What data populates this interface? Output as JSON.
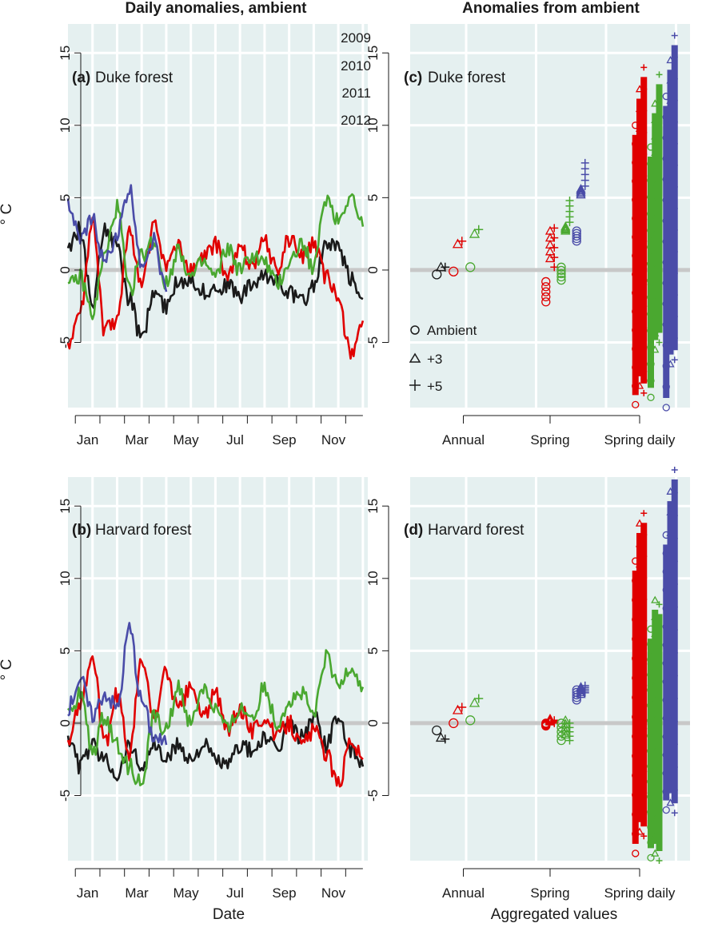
{
  "colors": {
    "panel_bg": "#e5f0f0",
    "grid": "#ffffff",
    "zero_line": "#c8c8c8",
    "2009": "#1a1a1a",
    "2010": "#e00000",
    "2011": "#4aa830",
    "2012": "#4a4ca8"
  },
  "column_titles": {
    "left": "Daily anomalies, ambient",
    "right": "Anomalies from ambient"
  },
  "x_titles": {
    "left": "Date",
    "right": "Aggregated values"
  },
  "y_title_left_top": "° C",
  "y_title_left_bottom": "° C",
  "legend": {
    "years": [
      "2009",
      "2010",
      "2011",
      "2012"
    ],
    "treatments": [
      {
        "symbol": "circle",
        "label": "Ambient"
      },
      {
        "symbol": "triangle",
        "label": "+3"
      },
      {
        "symbol": "plus",
        "label": "+5"
      }
    ]
  },
  "chart_data": [
    {
      "panel": "a",
      "type": "line",
      "label_tag": "(a)",
      "label_text": "Duke forest",
      "xlabel": "",
      "ylabel": "° C",
      "ylim": [
        -9.5,
        17
      ],
      "yticks": [
        -5,
        0,
        5,
        10,
        15
      ],
      "x_ticks": [
        "Jan",
        "Mar",
        "May",
        "Jul",
        "Sep",
        "Nov"
      ],
      "x_tick_months": [
        1,
        3,
        5,
        7,
        9,
        11
      ],
      "x_range_months": [
        0.5,
        12.7
      ],
      "series": [
        {
          "name": "2009",
          "x": [
            0.5,
            1.0,
            1.5,
            2.0,
            2.5,
            3.0,
            3.5,
            4.0,
            4.5,
            5.0,
            5.5,
            6.0,
            6.5,
            7.0,
            7.5,
            8.0,
            8.5,
            9.0,
            9.5,
            10.0,
            10.5,
            11.0,
            11.5,
            12.0,
            12.5
          ],
          "y": [
            1.5,
            2.8,
            -2.5,
            3.0,
            1.5,
            -2.0,
            -4.8,
            -1.5,
            -2.5,
            -0.8,
            -0.5,
            -1.5,
            -1.2,
            -1.0,
            -1.8,
            -1.0,
            -0.5,
            -0.5,
            -1.5,
            -2.2,
            -1.0,
            1.8,
            1.5,
            -0.5,
            -2.0
          ]
        },
        {
          "name": "2010",
          "x": [
            0.5,
            1.0,
            1.5,
            2.0,
            2.5,
            3.0,
            3.5,
            4.0,
            4.5,
            5.0,
            5.5,
            6.0,
            6.5,
            7.0,
            7.5,
            8.0,
            8.5,
            9.0,
            9.5,
            10.0,
            10.5,
            11.0,
            11.5,
            12.0,
            12.5
          ],
          "y": [
            -5.2,
            -3.0,
            3.2,
            -4.2,
            -3.5,
            2.8,
            -1.0,
            3.0,
            0.5,
            1.5,
            0.0,
            0.8,
            1.8,
            -0.5,
            1.5,
            0.5,
            2.0,
            0.0,
            2.2,
            1.0,
            1.8,
            -0.5,
            -2.0,
            -5.8,
            -3.5
          ]
        },
        {
          "name": "2011",
          "x": [
            0.5,
            1.0,
            1.5,
            2.0,
            2.5,
            3.0,
            3.5,
            4.0,
            4.5,
            5.0,
            5.5,
            6.0,
            6.5,
            7.0,
            7.5,
            8.0,
            8.5,
            9.0,
            9.5,
            10.0,
            10.5,
            11.0,
            11.5,
            12.0,
            12.5
          ],
          "y": [
            -1.2,
            -0.5,
            -3.0,
            1.0,
            4.3,
            -1.5,
            1.0,
            2.0,
            -1.0,
            1.5,
            -0.5,
            0.5,
            -0.5,
            1.5,
            0.0,
            1.0,
            0.5,
            -1.0,
            0.5,
            1.8,
            0.2,
            5.0,
            3.5,
            5.2,
            3.0
          ]
        },
        {
          "name": "2012",
          "x": [
            0.5,
            1.0,
            1.5,
            2.0,
            2.5,
            3.0,
            3.5,
            4.0,
            4.5
          ],
          "y": [
            4.5,
            2.0,
            3.5,
            0.5,
            2.5,
            5.5,
            0.5,
            2.0,
            -1.5
          ]
        }
      ]
    },
    {
      "panel": "b",
      "type": "line",
      "label_tag": "(b)",
      "label_text": "Harvard forest",
      "xlabel": "Date",
      "ylabel": "° C",
      "ylim": [
        -9.5,
        17
      ],
      "yticks": [
        -5,
        0,
        5,
        10,
        15
      ],
      "x_ticks": [
        "Jan",
        "Mar",
        "May",
        "Jul",
        "Sep",
        "Nov"
      ],
      "x_tick_months": [
        1,
        3,
        5,
        7,
        9,
        11
      ],
      "x_range_months": [
        0.5,
        12.7
      ],
      "series": [
        {
          "name": "2009",
          "x": [
            0.5,
            1.0,
            1.5,
            2.0,
            2.5,
            3.0,
            3.5,
            4.0,
            4.5,
            5.0,
            5.5,
            6.0,
            6.5,
            7.0,
            7.5,
            8.0,
            8.5,
            9.0,
            9.5,
            10.0,
            10.5,
            11.0,
            11.5,
            12.0,
            12.5
          ],
          "y": [
            -1.0,
            -3.0,
            -1.5,
            -2.5,
            -3.5,
            -1.5,
            -3.0,
            -1.5,
            -2.5,
            -1.5,
            -2.5,
            -1.5,
            -2.5,
            -3.0,
            -1.5,
            -2.0,
            -1.0,
            -2.0,
            0.0,
            -1.0,
            0.5,
            -1.5,
            0.5,
            -2.0,
            -3.0
          ]
        },
        {
          "name": "2010",
          "x": [
            0.5,
            1.0,
            1.5,
            2.0,
            2.5,
            3.0,
            3.5,
            4.0,
            4.5,
            5.0,
            5.5,
            6.0,
            6.5,
            7.0,
            7.5,
            8.0,
            8.5,
            9.0,
            9.5,
            10.0,
            10.5,
            11.0,
            11.5,
            12.0,
            12.5
          ],
          "y": [
            -1.5,
            1.5,
            4.5,
            -1.5,
            2.0,
            -2.0,
            4.3,
            0.5,
            3.5,
            1.0,
            2.5,
            0.5,
            2.0,
            -0.5,
            1.0,
            -0.5,
            0.5,
            -1.0,
            0.0,
            -1.5,
            -0.5,
            -2.0,
            -4.3,
            -1.0,
            -2.5
          ]
        },
        {
          "name": "2011",
          "x": [
            0.5,
            1.0,
            1.5,
            2.0,
            2.5,
            3.0,
            3.5,
            4.0,
            4.5,
            5.0,
            5.5,
            6.0,
            6.5,
            7.0,
            7.5,
            8.0,
            8.5,
            9.0,
            9.5,
            10.0,
            10.5,
            11.0,
            11.5,
            12.0,
            12.5
          ],
          "y": [
            0.5,
            2.0,
            -2.0,
            0.5,
            -1.5,
            -3.0,
            -4.2,
            0.5,
            -0.5,
            2.5,
            0.0,
            2.5,
            1.0,
            -0.5,
            1.0,
            0.5,
            2.5,
            0.0,
            1.5,
            2.0,
            0.5,
            4.5,
            2.5,
            4.0,
            2.5
          ]
        },
        {
          "name": "2012",
          "x": [
            0.5,
            1.0,
            1.5,
            2.0,
            2.5,
            3.0,
            3.5,
            4.0,
            4.5
          ],
          "y": [
            1.0,
            3.0,
            0.5,
            2.0,
            1.0,
            6.5,
            1.5,
            -1.0,
            -1.5
          ]
        }
      ]
    },
    {
      "panel": "c",
      "type": "scatter",
      "label_tag": "(c)",
      "label_text": "Duke forest",
      "xlabel": "",
      "ylabel": "",
      "ylim": [
        -9.5,
        17
      ],
      "categories": [
        "Annual",
        "Spring",
        "Spring daily"
      ],
      "series": [
        {
          "name": "2009",
          "treatment": "Ambient",
          "category": "Annual",
          "y": [
            -0.3
          ]
        },
        {
          "name": "2009",
          "treatment": "+3",
          "category": "Annual",
          "y": [
            0.2
          ]
        },
        {
          "name": "2009",
          "treatment": "+5",
          "category": "Annual",
          "y": [
            0.2
          ]
        },
        {
          "name": "2010",
          "treatment": "Ambient",
          "category": "Annual",
          "y": [
            -0.1
          ]
        },
        {
          "name": "2010",
          "treatment": "+3",
          "category": "Annual",
          "y": [
            1.8
          ]
        },
        {
          "name": "2010",
          "treatment": "+5",
          "category": "Annual",
          "y": [
            2.0
          ]
        },
        {
          "name": "2011",
          "treatment": "Ambient",
          "category": "Annual",
          "y": [
            0.2
          ]
        },
        {
          "name": "2011",
          "treatment": "+3",
          "category": "Annual",
          "y": [
            2.5
          ]
        },
        {
          "name": "2011",
          "treatment": "+5",
          "category": "Annual",
          "y": [
            2.8
          ]
        },
        {
          "name": "2010",
          "treatment": "Ambient",
          "category": "Spring",
          "range": [
            -2.2,
            -0.8
          ]
        },
        {
          "name": "2010",
          "treatment": "+3",
          "category": "Spring",
          "range": [
            0.8,
            2.7
          ]
        },
        {
          "name": "2010",
          "treatment": "+5",
          "category": "Spring",
          "range": [
            0.2,
            2.9
          ]
        },
        {
          "name": "2011",
          "treatment": "Ambient",
          "category": "Spring",
          "range": [
            -0.7,
            0.2
          ]
        },
        {
          "name": "2011",
          "treatment": "+3",
          "category": "Spring",
          "range": [
            2.7,
            3.0
          ]
        },
        {
          "name": "2011",
          "treatment": "+5",
          "category": "Spring",
          "range": [
            3.3,
            4.8
          ]
        },
        {
          "name": "2012",
          "treatment": "Ambient",
          "category": "Spring",
          "range": [
            2.0,
            2.7
          ]
        },
        {
          "name": "2012",
          "treatment": "+3",
          "category": "Spring",
          "range": [
            5.2,
            5.6
          ]
        },
        {
          "name": "2012",
          "treatment": "+5",
          "category": "Spring",
          "range": [
            5.8,
            7.4
          ]
        },
        {
          "name": "2010",
          "treatment": "Ambient",
          "category": "Spring daily",
          "range": [
            -9.3,
            10.0
          ]
        },
        {
          "name": "2010",
          "treatment": "+3",
          "category": "Spring daily",
          "range": [
            -8.0,
            12.5
          ]
        },
        {
          "name": "2010",
          "treatment": "+5",
          "category": "Spring daily",
          "range": [
            -8.5,
            14.0
          ]
        },
        {
          "name": "2011",
          "treatment": "Ambient",
          "category": "Spring daily",
          "range": [
            -8.8,
            8.5
          ]
        },
        {
          "name": "2011",
          "treatment": "+3",
          "category": "Spring daily",
          "range": [
            -5.5,
            11.5
          ]
        },
        {
          "name": "2011",
          "treatment": "+5",
          "category": "Spring daily",
          "range": [
            -5.0,
            13.5
          ]
        },
        {
          "name": "2012",
          "treatment": "Ambient",
          "category": "Spring daily",
          "range": [
            -9.5,
            12.0
          ]
        },
        {
          "name": "2012",
          "treatment": "+3",
          "category": "Spring daily",
          "range": [
            -6.5,
            14.5
          ]
        },
        {
          "name": "2012",
          "treatment": "+5",
          "category": "Spring daily",
          "range": [
            -6.2,
            16.2
          ]
        }
      ]
    },
    {
      "panel": "d",
      "type": "scatter",
      "label_tag": "(d)",
      "label_text": "Harvard forest",
      "xlabel": "Aggregated values",
      "ylabel": "",
      "ylim": [
        -9.5,
        17
      ],
      "categories": [
        "Annual",
        "Spring",
        "Spring daily"
      ],
      "series": [
        {
          "name": "2009",
          "treatment": "Ambient",
          "category": "Annual",
          "y": [
            -0.5
          ]
        },
        {
          "name": "2009",
          "treatment": "+3",
          "category": "Annual",
          "y": [
            -1.0
          ]
        },
        {
          "name": "2009",
          "treatment": "+5",
          "category": "Annual",
          "y": [
            -1.1
          ]
        },
        {
          "name": "2010",
          "treatment": "Ambient",
          "category": "Annual",
          "y": [
            0.0
          ]
        },
        {
          "name": "2010",
          "treatment": "+3",
          "category": "Annual",
          "y": [
            0.9
          ]
        },
        {
          "name": "2010",
          "treatment": "+5",
          "category": "Annual",
          "y": [
            1.1
          ]
        },
        {
          "name": "2011",
          "treatment": "Ambient",
          "category": "Annual",
          "y": [
            0.2
          ]
        },
        {
          "name": "2011",
          "treatment": "+3",
          "category": "Annual",
          "y": [
            1.4
          ]
        },
        {
          "name": "2011",
          "treatment": "+5",
          "category": "Annual",
          "y": [
            1.7
          ]
        },
        {
          "name": "2010",
          "treatment": "Ambient",
          "category": "Spring",
          "range": [
            -0.2,
            0.0
          ]
        },
        {
          "name": "2010",
          "treatment": "+3",
          "category": "Spring",
          "range": [
            0.1,
            0.3
          ]
        },
        {
          "name": "2010",
          "treatment": "+5",
          "category": "Spring",
          "range": [
            0.0,
            0.2
          ]
        },
        {
          "name": "2011",
          "treatment": "Ambient",
          "category": "Spring",
          "range": [
            -1.2,
            0.0
          ]
        },
        {
          "name": "2011",
          "treatment": "+3",
          "category": "Spring",
          "range": [
            -0.8,
            0.2
          ]
        },
        {
          "name": "2011",
          "treatment": "+5",
          "category": "Spring",
          "range": [
            -1.2,
            0.0
          ]
        },
        {
          "name": "2012",
          "treatment": "Ambient",
          "category": "Spring",
          "range": [
            1.6,
            2.3
          ]
        },
        {
          "name": "2012",
          "treatment": "+3",
          "category": "Spring",
          "range": [
            2.0,
            2.5
          ]
        },
        {
          "name": "2012",
          "treatment": "+5",
          "category": "Spring",
          "range": [
            2.1,
            2.6
          ]
        },
        {
          "name": "2010",
          "treatment": "Ambient",
          "category": "Spring daily",
          "range": [
            -9.0,
            11.2
          ]
        },
        {
          "name": "2010",
          "treatment": "+3",
          "category": "Spring daily",
          "range": [
            -7.5,
            13.8
          ]
        },
        {
          "name": "2010",
          "treatment": "+5",
          "category": "Spring daily",
          "range": [
            -7.8,
            14.5
          ]
        },
        {
          "name": "2011",
          "treatment": "Ambient",
          "category": "Spring daily",
          "range": [
            -9.3,
            6.5
          ]
        },
        {
          "name": "2011",
          "treatment": "+3",
          "category": "Spring daily",
          "range": [
            -9.0,
            8.5
          ]
        },
        {
          "name": "2011",
          "treatment": "+5",
          "category": "Spring daily",
          "range": [
            -9.5,
            8.2
          ]
        },
        {
          "name": "2012",
          "treatment": "Ambient",
          "category": "Spring daily",
          "range": [
            -6.0,
            13.0
          ]
        },
        {
          "name": "2012",
          "treatment": "+3",
          "category": "Spring daily",
          "range": [
            -5.5,
            16.0
          ]
        },
        {
          "name": "2012",
          "treatment": "+5",
          "category": "Spring daily",
          "range": [
            -6.2,
            17.5
          ]
        }
      ]
    }
  ]
}
